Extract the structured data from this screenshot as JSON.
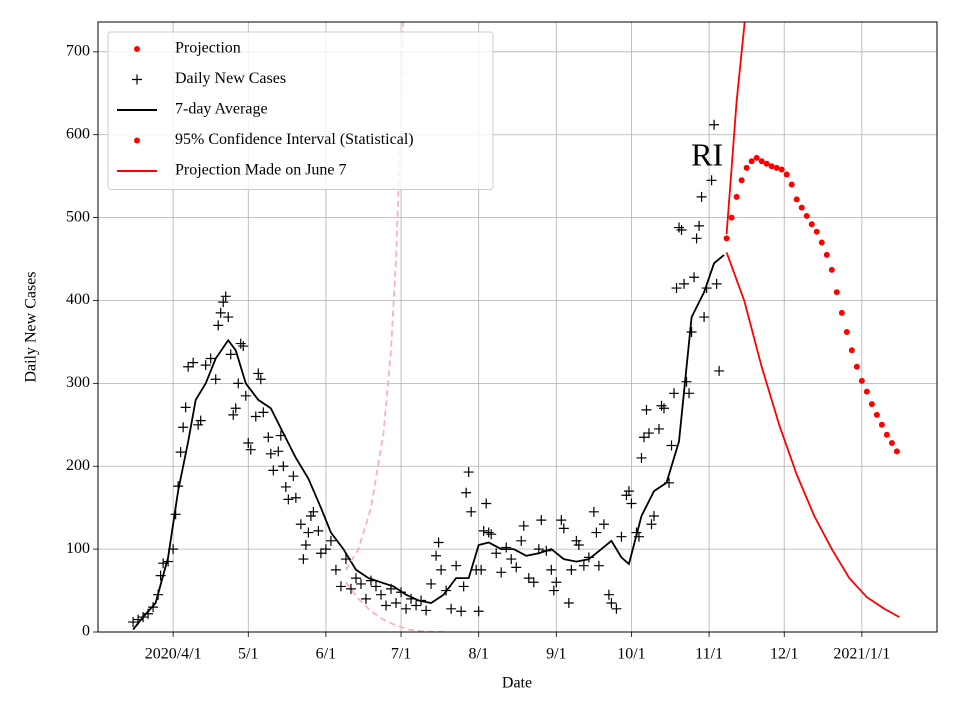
{
  "chart_data": {
    "type": "line",
    "annotation": "RI",
    "xlabel": "Date",
    "ylabel": "Daily New Cases",
    "grid": true,
    "legend": "upper left",
    "xlim": [
      "2020-03-02",
      "2021-01-31"
    ],
    "xticks": [
      {
        "value": "2020-04-01",
        "label": "2020/4/1"
      },
      {
        "value": "2020-05-01",
        "label": "5/1"
      },
      {
        "value": "2020-06-01",
        "label": "6/1"
      },
      {
        "value": "2020-07-01",
        "label": "7/1"
      },
      {
        "value": "2020-08-01",
        "label": "8/1"
      },
      {
        "value": "2020-09-01",
        "label": "9/1"
      },
      {
        "value": "2020-10-01",
        "label": "10/1"
      },
      {
        "value": "2020-11-01",
        "label": "11/1"
      },
      {
        "value": "2020-12-01",
        "label": "12/1"
      },
      {
        "value": "2021-01-01",
        "label": "2021/1/1"
      }
    ],
    "ylim": [
      0,
      736
    ],
    "yticks": [
      0,
      100,
      200,
      300,
      400,
      500,
      600,
      700
    ],
    "series": [
      {
        "name": "Projection",
        "color": "#ff0000",
        "marker": "dot",
        "x": [
          "2020-11-08",
          "2020-11-10",
          "2020-11-12",
          "2020-11-14",
          "2020-11-16",
          "2020-11-18",
          "2020-11-20",
          "2020-11-22",
          "2020-11-24",
          "2020-11-26",
          "2020-11-28",
          "2020-11-30",
          "2020-12-02",
          "2020-12-04",
          "2020-12-06",
          "2020-12-08",
          "2020-12-10",
          "2020-12-12",
          "2020-12-14",
          "2020-12-16",
          "2020-12-18",
          "2020-12-20",
          "2020-12-22",
          "2020-12-24",
          "2020-12-26",
          "2020-12-28",
          "2020-12-30",
          "2021-01-01",
          "2021-01-03",
          "2021-01-05",
          "2021-01-07",
          "2021-01-09",
          "2021-01-11",
          "2021-01-13",
          "2021-01-15"
        ],
        "values": [
          475,
          500,
          525,
          545,
          560,
          568,
          572,
          568,
          565,
          562,
          560,
          558,
          552,
          540,
          522,
          512,
          502,
          492,
          483,
          470,
          455,
          437,
          410,
          385,
          362,
          340,
          320,
          303,
          290,
          275,
          262,
          250,
          238,
          228,
          218
        ]
      },
      {
        "name": "Daily New Cases",
        "color": "#000000",
        "marker": "plus",
        "x": [
          "2020-03-16",
          "2020-03-18",
          "2020-03-20",
          "2020-03-22",
          "2020-03-24",
          "2020-03-26",
          "2020-03-27",
          "2020-03-28",
          "2020-03-30",
          "2020-04-01",
          "2020-04-02",
          "2020-04-03",
          "2020-04-04",
          "2020-04-05",
          "2020-04-06",
          "2020-04-07",
          "2020-04-09",
          "2020-04-11",
          "2020-04-12",
          "2020-04-14",
          "2020-04-16",
          "2020-04-18",
          "2020-04-19",
          "2020-04-20",
          "2020-04-21",
          "2020-04-22",
          "2020-04-23",
          "2020-04-24",
          "2020-04-25",
          "2020-04-26",
          "2020-04-27",
          "2020-04-28",
          "2020-04-29",
          "2020-04-30",
          "2020-05-01",
          "2020-05-02",
          "2020-05-04",
          "2020-05-05",
          "2020-05-06",
          "2020-05-07",
          "2020-05-09",
          "2020-05-10",
          "2020-05-11",
          "2020-05-13",
          "2020-05-14",
          "2020-05-15",
          "2020-05-16",
          "2020-05-17",
          "2020-05-19",
          "2020-05-20",
          "2020-05-22",
          "2020-05-23",
          "2020-05-24",
          "2020-05-25",
          "2020-05-26",
          "2020-05-27",
          "2020-05-29",
          "2020-05-30",
          "2020-06-01",
          "2020-06-03",
          "2020-06-05",
          "2020-06-07",
          "2020-06-09",
          "2020-06-11",
          "2020-06-13",
          "2020-06-15",
          "2020-06-17",
          "2020-06-19",
          "2020-06-21",
          "2020-06-23",
          "2020-06-25",
          "2020-06-27",
          "2020-06-29",
          "2020-07-01",
          "2020-07-03",
          "2020-07-05",
          "2020-07-07",
          "2020-07-09",
          "2020-07-11",
          "2020-07-13",
          "2020-07-15",
          "2020-07-16",
          "2020-07-17",
          "2020-07-19",
          "2020-07-21",
          "2020-07-23",
          "2020-07-25",
          "2020-07-26",
          "2020-07-27",
          "2020-07-28",
          "2020-07-29",
          "2020-07-31",
          "2020-08-01",
          "2020-08-02",
          "2020-08-03",
          "2020-08-04",
          "2020-08-05",
          "2020-08-06",
          "2020-08-08",
          "2020-08-10",
          "2020-08-12",
          "2020-08-14",
          "2020-08-16",
          "2020-08-18",
          "2020-08-19",
          "2020-08-21",
          "2020-08-23",
          "2020-08-25",
          "2020-08-26",
          "2020-08-28",
          "2020-08-30",
          "2020-08-31",
          "2020-09-01",
          "2020-09-03",
          "2020-09-04",
          "2020-09-06",
          "2020-09-07",
          "2020-09-09",
          "2020-09-10",
          "2020-09-12",
          "2020-09-14",
          "2020-09-16",
          "2020-09-17",
          "2020-09-18",
          "2020-09-20",
          "2020-09-22",
          "2020-09-23",
          "2020-09-25",
          "2020-09-27",
          "2020-09-29",
          "2020-09-30",
          "2020-10-01",
          "2020-10-03",
          "2020-10-04",
          "2020-10-05",
          "2020-10-06",
          "2020-10-07",
          "2020-10-08",
          "2020-10-09",
          "2020-10-10",
          "2020-10-12",
          "2020-10-13",
          "2020-10-14",
          "2020-10-16",
          "2020-10-17",
          "2020-10-18",
          "2020-10-19",
          "2020-10-20",
          "2020-10-21",
          "2020-10-22",
          "2020-10-23",
          "2020-10-24",
          "2020-10-25",
          "2020-10-26",
          "2020-10-27",
          "2020-10-28",
          "2020-10-29",
          "2020-10-30",
          "2020-10-31",
          "2020-11-02",
          "2020-11-03",
          "2020-11-04",
          "2020-11-05"
        ],
        "values": [
          12,
          15,
          18,
          22,
          30,
          45,
          68,
          83,
          85,
          100,
          142,
          176,
          217,
          247,
          271,
          320,
          325,
          250,
          255,
          322,
          330,
          305,
          370,
          385,
          398,
          405,
          380,
          335,
          262,
          270,
          300,
          348,
          345,
          285,
          228,
          220,
          260,
          312,
          305,
          265,
          235,
          215,
          195,
          218,
          237,
          200,
          175,
          160,
          188,
          162,
          130,
          88,
          105,
          120,
          140,
          145,
          122,
          95,
          100,
          110,
          75,
          55,
          88,
          52,
          65,
          58,
          40,
          62,
          55,
          45,
          32,
          52,
          35,
          48,
          28,
          40,
          32,
          38,
          26,
          58,
          92,
          108,
          75,
          50,
          28,
          80,
          25,
          55,
          168,
          193,
          145,
          75,
          25,
          75,
          122,
          155,
          120,
          118,
          95,
          72,
          102,
          88,
          78,
          110,
          128,
          65,
          60,
          100,
          135,
          98,
          75,
          50,
          60,
          135,
          125,
          35,
          75,
          110,
          105,
          80,
          90,
          145,
          120,
          80,
          130,
          45,
          35,
          28,
          115,
          165,
          170,
          155,
          120,
          115,
          210,
          235,
          268,
          240,
          130,
          140,
          245,
          273,
          270,
          180,
          225,
          288,
          415,
          488,
          485,
          420,
          302,
          288,
          362,
          428,
          475,
          490,
          525,
          380,
          415,
          545,
          612,
          420,
          315
        ]
      },
      {
        "name": "7-day Average",
        "color": "#000000",
        "line": "solid",
        "x": [
          "2020-03-16",
          "2020-03-20",
          "2020-03-25",
          "2020-03-30",
          "2020-04-03",
          "2020-04-07",
          "2020-04-10",
          "2020-04-14",
          "2020-04-18",
          "2020-04-23",
          "2020-04-26",
          "2020-04-30",
          "2020-05-05",
          "2020-05-10",
          "2020-05-15",
          "2020-05-20",
          "2020-05-25",
          "2020-05-30",
          "2020-06-03",
          "2020-06-08",
          "2020-06-13",
          "2020-06-18",
          "2020-06-23",
          "2020-06-28",
          "2020-07-03",
          "2020-07-08",
          "2020-07-13",
          "2020-07-18",
          "2020-07-23",
          "2020-07-28",
          "2020-08-01",
          "2020-08-05",
          "2020-08-10",
          "2020-08-15",
          "2020-08-20",
          "2020-08-25",
          "2020-08-30",
          "2020-09-04",
          "2020-09-09",
          "2020-09-14",
          "2020-09-19",
          "2020-09-23",
          "2020-09-27",
          "2020-09-30",
          "2020-10-05",
          "2020-10-10",
          "2020-10-15",
          "2020-10-20",
          "2020-10-25",
          "2020-10-30",
          "2020-11-03",
          "2020-11-07"
        ],
        "values": [
          3,
          18,
          35,
          90,
          170,
          230,
          280,
          300,
          330,
          352,
          340,
          300,
          280,
          270,
          240,
          210,
          185,
          150,
          120,
          100,
          75,
          65,
          60,
          55,
          45,
          38,
          35,
          45,
          65,
          65,
          105,
          108,
          100,
          100,
          92,
          95,
          100,
          88,
          85,
          88,
          100,
          110,
          90,
          82,
          140,
          170,
          180,
          230,
          380,
          410,
          445,
          455
        ]
      },
      {
        "name": "95% Confidence Interval (Statistical)",
        "color": "#ff0000",
        "marker": "dot",
        "x": [],
        "values": []
      },
      {
        "name": "Projection Made on June 7",
        "color": "#ff0000",
        "line": "solid",
        "x": [
          "2020-11-08",
          "2020-11-10",
          "2020-11-12",
          "2020-11-16",
          null,
          "2020-11-08",
          "2020-11-15",
          "2020-11-22",
          "2020-11-29",
          "2020-12-06",
          "2020-12-13",
          "2020-12-20",
          "2020-12-27",
          "2021-01-03",
          "2021-01-10",
          "2021-01-16"
        ],
        "values": [
          480,
          560,
          640,
          760,
          null,
          458,
          400,
          320,
          250,
          190,
          140,
          100,
          65,
          42,
          28,
          18
        ]
      },
      {
        "color": "#f8b4b4",
        "line": "dashed",
        "x": [
          "2020-06-09",
          "2020-06-14",
          "2020-06-19",
          "2020-06-24",
          "2020-06-27",
          "2020-06-29",
          "2020-07-01",
          "2020-07-02"
        ],
        "values": [
          75,
          100,
          150,
          240,
          340,
          450,
          620,
          760
        ]
      },
      {
        "color": "#f8b4b4",
        "line": "dashed",
        "x": [
          "2020-06-09",
          "2020-06-14",
          "2020-06-19",
          "2020-06-24",
          "2020-06-29",
          "2020-07-04",
          "2020-07-09",
          "2020-07-14",
          "2020-07-19"
        ],
        "values": [
          60,
          40,
          25,
          15,
          8,
          3,
          1,
          0,
          0
        ]
      }
    ]
  }
}
